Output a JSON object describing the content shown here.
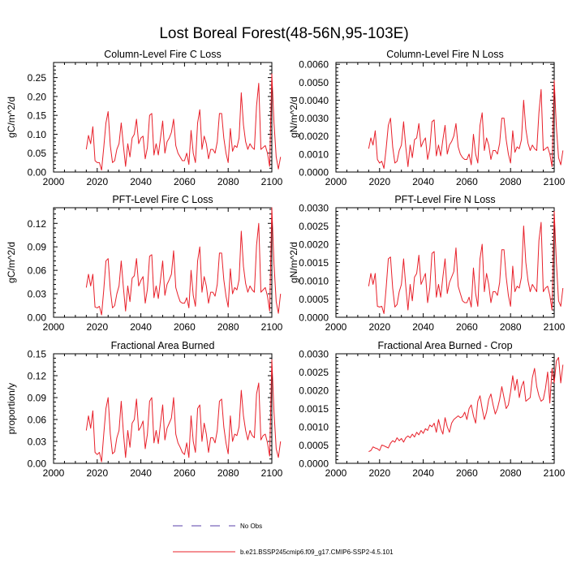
{
  "title": "Lost Boreal Forest(48-56N,95-103E)",
  "legend": {
    "items": [
      {
        "label": "No Obs",
        "style": "dashed",
        "color": "#5a3fa8"
      },
      {
        "label": "b.e21.BSSP245cmip6.f09_g17.CMIP6-SSP2-4.5.101",
        "style": "solid",
        "color": "#e8202a"
      }
    ]
  },
  "colors": {
    "series": "#e8202a",
    "axis": "#000000"
  },
  "chart_data": [
    {
      "type": "line",
      "title": "Column-Level Fire C Loss",
      "ylabel": "gC/m^2/d",
      "xlim": [
        2000,
        2100
      ],
      "ylim": [
        0,
        0.29
      ],
      "xticks": [
        2000,
        2020,
        2040,
        2060,
        2080,
        2100
      ],
      "xtick_labels": [
        "2000",
        "2020",
        "2040",
        "2060",
        "2080",
        "2100"
      ],
      "yticks": [
        0,
        0.05,
        0.1,
        0.15,
        0.2,
        0.25
      ],
      "ytick_labels": [
        "0.00",
        "0.05",
        "0.10",
        "0.15",
        "0.20",
        "0.25"
      ],
      "x_start": 2015,
      "series": [
        {
          "name": "b.e21.BSSP245cmip6.f09_g17.CMIP6-SSP2-4.5.101",
          "values": [
            0.06,
            0.097,
            0.075,
            0.12,
            0.03,
            0.025,
            0.025,
            0.005,
            0.065,
            0.13,
            0.16,
            0.07,
            0.025,
            0.03,
            0.06,
            0.075,
            0.13,
            0.07,
            0.015,
            0.075,
            0.04,
            0.09,
            0.1,
            0.14,
            0.075,
            0.09,
            0.095,
            0.035,
            0.065,
            0.15,
            0.155,
            0.045,
            0.075,
            0.045,
            0.09,
            0.135,
            0.05,
            0.08,
            0.09,
            0.105,
            0.14,
            0.07,
            0.05,
            0.04,
            0.03,
            0.03,
            0.05,
            0.02,
            0.11,
            0.05,
            0.025,
            0.13,
            0.165,
            0.06,
            0.095,
            0.075,
            0.035,
            0.06,
            0.06,
            0.05,
            0.08,
            0.155,
            0.155,
            0.09,
            0.05,
            0.025,
            0.115,
            0.055,
            0.07,
            0.065,
            0.09,
            0.21,
            0.125,
            0.08,
            0.06,
            0.075,
            0.065,
            0.06,
            0.175,
            0.235,
            0.06,
            0.065,
            0.07,
            0.05,
            0.015,
            0.26,
            0.13,
            0.04,
            0.008,
            0.04
          ]
        }
      ]
    },
    {
      "type": "line",
      "title": "Column-Level Fire N Loss",
      "ylabel": "gN/m^2/d",
      "xlim": [
        2000,
        2100
      ],
      "ylim": [
        0,
        0.0061
      ],
      "xticks": [
        2000,
        2020,
        2040,
        2060,
        2080,
        2100
      ],
      "xtick_labels": [
        "2000",
        "2020",
        "2040",
        "2060",
        "2080",
        "2100"
      ],
      "yticks": [
        0,
        0.001,
        0.002,
        0.003,
        0.004,
        0.005,
        0.006
      ],
      "ytick_labels": [
        "0.0000",
        "0.0010",
        "0.0020",
        "0.0030",
        "0.0040",
        "0.0050",
        "0.0060"
      ],
      "x_start": 2015,
      "series": [
        {
          "name": "b.e21.BSSP245cmip6.f09_g17.CMIP6-SSP2-4.5.101",
          "values": [
            0.0013,
            0.0019,
            0.0015,
            0.0023,
            0.0007,
            0.0005,
            0.0006,
            0.0002,
            0.0013,
            0.0026,
            0.003,
            0.0014,
            0.0005,
            0.0006,
            0.0012,
            0.0015,
            0.0028,
            0.0014,
            0.0003,
            0.0015,
            0.0008,
            0.0018,
            0.0019,
            0.0027,
            0.0014,
            0.0017,
            0.0019,
            0.0007,
            0.0013,
            0.0028,
            0.0029,
            0.0009,
            0.0015,
            0.0009,
            0.0018,
            0.0026,
            0.001,
            0.0015,
            0.0017,
            0.002,
            0.0027,
            0.0014,
            0.001,
            0.0008,
            0.0007,
            0.0007,
            0.001,
            0.0004,
            0.0021,
            0.001,
            0.0005,
            0.0026,
            0.0033,
            0.0012,
            0.0019,
            0.0015,
            0.0007,
            0.0012,
            0.0012,
            0.001,
            0.0016,
            0.003,
            0.003,
            0.0018,
            0.001,
            0.0005,
            0.0023,
            0.0011,
            0.0014,
            0.0013,
            0.0018,
            0.004,
            0.0024,
            0.0016,
            0.0012,
            0.0015,
            0.0013,
            0.0012,
            0.0033,
            0.0046,
            0.0012,
            0.0013,
            0.0014,
            0.001,
            0.0003,
            0.0051,
            0.0025,
            0.0008,
            0.0004,
            0.0012
          ]
        }
      ]
    },
    {
      "type": "line",
      "title": "PFT-Level Fire C Loss",
      "ylabel": "gC/m^2/d",
      "xlim": [
        2000,
        2100
      ],
      "ylim": [
        0,
        0.14
      ],
      "xticks": [
        2000,
        2020,
        2040,
        2060,
        2080,
        2100
      ],
      "xtick_labels": [
        "2000",
        "2020",
        "2040",
        "2060",
        "2080",
        "2100"
      ],
      "yticks": [
        0,
        0.03,
        0.06,
        0.09,
        0.12
      ],
      "ytick_labels": [
        "0.00",
        "0.03",
        "0.06",
        "0.09",
        "0.12"
      ],
      "x_start": 2015,
      "series": [
        {
          "name": "b.e21.BSSP245cmip6.f09_g17.CMIP6-SSP2-4.5.101",
          "values": [
            0.038,
            0.055,
            0.04,
            0.055,
            0.013,
            0.012,
            0.014,
            0.003,
            0.035,
            0.072,
            0.075,
            0.035,
            0.012,
            0.015,
            0.03,
            0.04,
            0.072,
            0.038,
            0.008,
            0.04,
            0.02,
            0.05,
            0.053,
            0.075,
            0.04,
            0.047,
            0.052,
            0.018,
            0.036,
            0.078,
            0.08,
            0.025,
            0.04,
            0.024,
            0.048,
            0.072,
            0.028,
            0.042,
            0.048,
            0.055,
            0.085,
            0.038,
            0.028,
            0.02,
            0.018,
            0.018,
            0.025,
            0.012,
            0.06,
            0.028,
            0.014,
            0.072,
            0.09,
            0.032,
            0.052,
            0.04,
            0.018,
            0.032,
            0.032,
            0.027,
            0.042,
            0.082,
            0.082,
            0.048,
            0.027,
            0.013,
            0.062,
            0.03,
            0.038,
            0.035,
            0.048,
            0.11,
            0.065,
            0.043,
            0.032,
            0.04,
            0.035,
            0.032,
            0.092,
            0.12,
            0.032,
            0.035,
            0.038,
            0.027,
            0.008,
            0.14,
            0.068,
            0.02,
            0.005,
            0.03
          ]
        }
      ]
    },
    {
      "type": "line",
      "title": "PFT-Level Fire N Loss",
      "ylabel": "gN/m^2/d",
      "xlim": [
        2000,
        2100
      ],
      "ylim": [
        0,
        0.003
      ],
      "xticks": [
        2000,
        2020,
        2040,
        2060,
        2080,
        2100
      ],
      "xtick_labels": [
        "2000",
        "2020",
        "2040",
        "2060",
        "2080",
        "2100"
      ],
      "yticks": [
        0,
        0.0005,
        0.001,
        0.0015,
        0.002,
        0.0025,
        0.003
      ],
      "ytick_labels": [
        "0.0000",
        "0.0005",
        "0.0010",
        "0.0015",
        "0.0020",
        "0.0025",
        "0.0030"
      ],
      "x_start": 2015,
      "series": [
        {
          "name": "b.e21.BSSP245cmip6.f09_g17.CMIP6-SSP2-4.5.101",
          "values": [
            0.00085,
            0.0012,
            0.0009,
            0.0012,
            0.0003,
            0.00028,
            0.0003,
            0.0001,
            0.0008,
            0.0016,
            0.00165,
            0.0008,
            0.00028,
            0.00035,
            0.0007,
            0.0009,
            0.0016,
            0.00085,
            0.0002,
            0.0009,
            0.00045,
            0.0011,
            0.0012,
            0.0017,
            0.0009,
            0.00105,
            0.0012,
            0.0004,
            0.0008,
            0.00175,
            0.0018,
            0.00055,
            0.0009,
            0.00055,
            0.0011,
            0.0016,
            0.00065,
            0.00095,
            0.0011,
            0.00125,
            0.0019,
            0.00085,
            0.00065,
            0.00045,
            0.0004,
            0.0004,
            0.00055,
            0.00028,
            0.00135,
            0.00065,
            0.0003,
            0.0016,
            0.002,
            0.0007,
            0.0012,
            0.0009,
            0.0004,
            0.0007,
            0.0007,
            0.0006,
            0.00095,
            0.00185,
            0.00185,
            0.0011,
            0.0006,
            0.0003,
            0.0014,
            0.0007,
            0.00085,
            0.0008,
            0.0011,
            0.0025,
            0.0015,
            0.001,
            0.0007,
            0.0009,
            0.0008,
            0.0007,
            0.0021,
            0.0026,
            0.0007,
            0.0008,
            0.00085,
            0.0006,
            0.0002,
            0.0029,
            0.0015,
            0.00045,
            0.0003,
            0.0008
          ]
        }
      ]
    },
    {
      "type": "line",
      "title": "Fractional Area Burned",
      "ylabel": "proportion/y",
      "xlim": [
        2000,
        2100
      ],
      "ylim": [
        0,
        0.15
      ],
      "xticks": [
        2000,
        2020,
        2040,
        2060,
        2080,
        2100
      ],
      "xtick_labels": [
        "2000",
        "2020",
        "2040",
        "2060",
        "2080",
        "2100"
      ],
      "yticks": [
        0,
        0.03,
        0.06,
        0.09,
        0.12,
        0.15
      ],
      "ytick_labels": [
        "0.00",
        "0.03",
        "0.06",
        "0.09",
        "0.12",
        "0.15"
      ],
      "x_start": 2015,
      "series": [
        {
          "name": "b.e21.BSSP245cmip6.f09_g17.CMIP6-SSP2-4.5.101",
          "values": [
            0.045,
            0.065,
            0.048,
            0.072,
            0.015,
            0.012,
            0.015,
            0.002,
            0.04,
            0.075,
            0.09,
            0.04,
            0.013,
            0.016,
            0.035,
            0.045,
            0.085,
            0.042,
            0.008,
            0.045,
            0.022,
            0.055,
            0.06,
            0.088,
            0.045,
            0.05,
            0.058,
            0.02,
            0.04,
            0.085,
            0.09,
            0.028,
            0.045,
            0.027,
            0.055,
            0.08,
            0.032,
            0.048,
            0.055,
            0.062,
            0.09,
            0.04,
            0.028,
            0.022,
            0.015,
            0.012,
            0.028,
            0.008,
            0.065,
            0.03,
            0.015,
            0.075,
            0.08,
            0.03,
            0.055,
            0.04,
            0.015,
            0.035,
            0.035,
            0.028,
            0.045,
            0.085,
            0.088,
            0.05,
            0.028,
            0.013,
            0.065,
            0.03,
            0.04,
            0.038,
            0.05,
            0.1,
            0.065,
            0.045,
            0.032,
            0.045,
            0.038,
            0.035,
            0.095,
            0.11,
            0.032,
            0.038,
            0.04,
            0.028,
            0.01,
            0.142,
            0.07,
            0.02,
            0.008,
            0.03
          ]
        }
      ]
    },
    {
      "type": "line",
      "title": "Fractional Area Burned - Crop",
      "ylabel": "",
      "xlim": [
        2000,
        2100
      ],
      "ylim": [
        0,
        0.003
      ],
      "xticks": [
        2000,
        2020,
        2040,
        2060,
        2080,
        2100
      ],
      "xtick_labels": [
        "2000",
        "2020",
        "2040",
        "2060",
        "2080",
        "2100"
      ],
      "yticks": [
        0,
        0.0005,
        0.001,
        0.0015,
        0.002,
        0.0025,
        0.003
      ],
      "ytick_labels": [
        "0.0000",
        "0.0005",
        "0.0010",
        "0.0015",
        "0.0020",
        "0.0025",
        "0.0030"
      ],
      "x_start": 2015,
      "series": [
        {
          "name": "b.e21.BSSP245cmip6.f09_g17.CMIP6-SSP2-4.5.101",
          "values": [
            0.00032,
            0.00035,
            0.00045,
            0.00042,
            0.0004,
            0.00035,
            0.0005,
            0.00048,
            0.00045,
            0.00042,
            0.00055,
            0.00062,
            0.00058,
            0.0007,
            0.00062,
            0.00068,
            0.00058,
            0.0007,
            0.00075,
            0.0007,
            0.0008,
            0.00072,
            0.00085,
            0.00078,
            0.0009,
            0.00082,
            0.00095,
            0.0009,
            0.00105,
            0.001,
            0.0011,
            0.00085,
            0.0012,
            0.00095,
            0.0008,
            0.00125,
            0.001,
            0.00085,
            0.0011,
            0.0012,
            0.00125,
            0.0013,
            0.00125,
            0.00128,
            0.0014,
            0.0012,
            0.0015,
            0.0016,
            0.0013,
            0.0011,
            0.0017,
            0.00185,
            0.0015,
            0.0012,
            0.0014,
            0.00175,
            0.0019,
            0.0016,
            0.00135,
            0.0015,
            0.00175,
            0.0021,
            0.0018,
            0.0015,
            0.0016,
            0.00195,
            0.0024,
            0.002,
            0.0023,
            0.0018,
            0.0021,
            0.00225,
            0.0017,
            0.00175,
            0.0018,
            0.00235,
            0.0026,
            0.0021,
            0.00185,
            0.0017,
            0.00175,
            0.00205,
            0.0025,
            0.00165,
            0.0026,
            0.0022,
            0.0028,
            0.0029,
            0.0022,
            0.0027
          ]
        }
      ]
    }
  ]
}
